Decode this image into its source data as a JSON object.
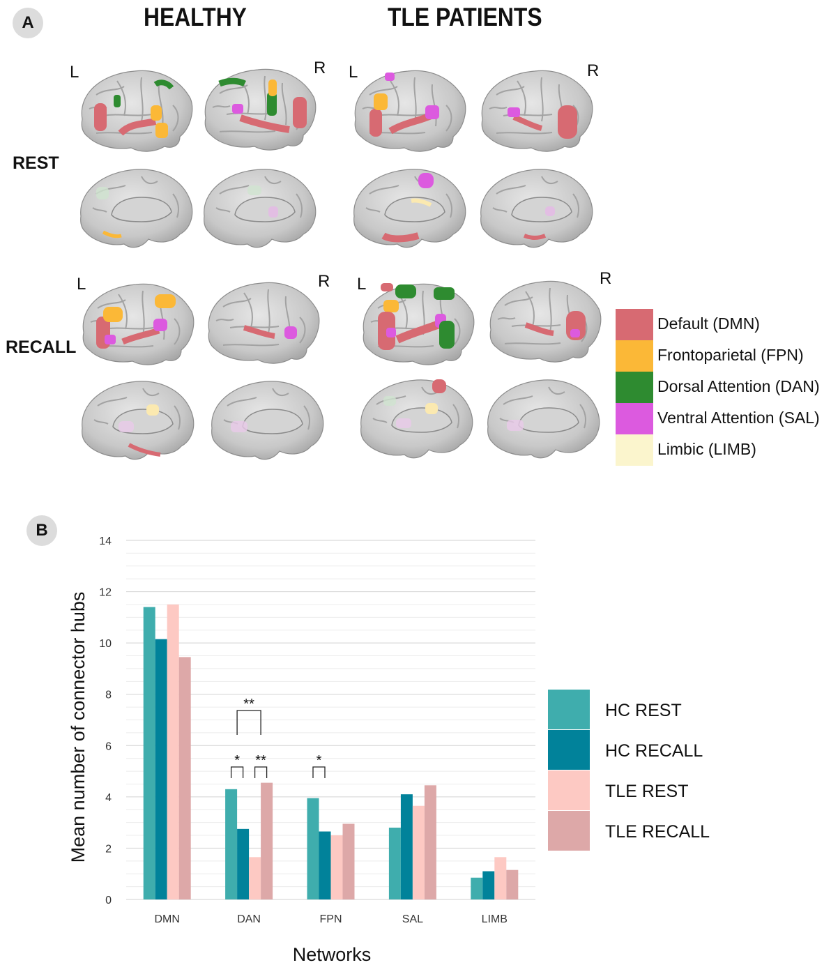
{
  "panel_a": {
    "badge": "A",
    "groups": [
      "HEALTHY",
      "TLE PATIENTS"
    ],
    "conditions": [
      "REST",
      "RECALL"
    ],
    "hemisphere_labels": {
      "left": "L",
      "right": "R"
    },
    "legend": [
      {
        "label": "Default (DMN)",
        "color": "#d76a72"
      },
      {
        "label": "Frontoparietal (FPN)",
        "color": "#fbb837"
      },
      {
        "label": "Dorsal Attention (DAN)",
        "color": "#2e8b30"
      },
      {
        "label": "Ventral Attention (SAL)",
        "color": "#dc5adf"
      },
      {
        "label": "Limbic (LIMB)",
        "color": "#fbf5cd"
      }
    ]
  },
  "panel_b": {
    "badge": "B",
    "legend": [
      {
        "label": "HC REST",
        "color": "#3fadad"
      },
      {
        "label": "HC RECALL",
        "color": "#01829a"
      },
      {
        "label": "TLE REST",
        "color": "#fdc9c3"
      },
      {
        "label": "TLE RECALL",
        "color": "#dda8a8"
      }
    ],
    "significance": [
      {
        "category": "DAN",
        "from": 0,
        "to": 1,
        "label": "*"
      },
      {
        "category": "DAN",
        "from": 2,
        "to": 3,
        "label": "**"
      },
      {
        "category": "DAN",
        "from": 0,
        "to": 2,
        "label": "**",
        "level": 2
      },
      {
        "category": "FPN",
        "from": 0,
        "to": 1,
        "label": "*"
      }
    ]
  },
  "chart_data": {
    "type": "bar",
    "categories": [
      "DMN",
      "DAN",
      "FPN",
      "SAL",
      "LIMB"
    ],
    "series": [
      {
        "name": "HC REST",
        "values": [
          11.4,
          4.3,
          3.95,
          2.8,
          0.85
        ]
      },
      {
        "name": "HC RECALL",
        "values": [
          10.15,
          2.75,
          2.65,
          4.1,
          1.1
        ]
      },
      {
        "name": "TLE REST",
        "values": [
          11.5,
          1.65,
          2.5,
          3.65,
          1.65
        ]
      },
      {
        "name": "TLE RECALL",
        "values": [
          9.45,
          4.55,
          2.95,
          4.45,
          1.15
        ]
      }
    ],
    "xlabel": "Networks",
    "ylabel": "Mean number of connector hubs",
    "ylim": [
      0,
      14
    ],
    "yticks": [
      0,
      2,
      4,
      6,
      8,
      10,
      12,
      14
    ],
    "grid": true,
    "legend_position": "right"
  }
}
